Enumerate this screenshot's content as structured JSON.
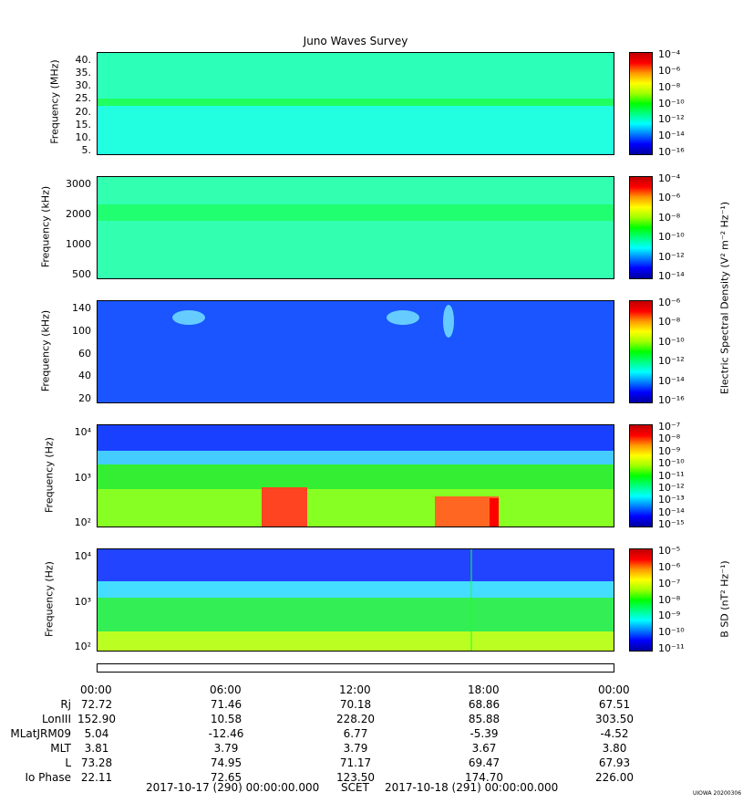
{
  "title": "Juno Waves Survey",
  "right_label": "Electric Spectral Density (V² m⁻² Hz⁻¹)",
  "bsd_label": "B SD (nT² Hz⁻¹)",
  "panels": [
    {
      "ylabel": "Frequency (MHz)",
      "yticks": [
        "40.",
        "35.",
        "30.",
        "25.",
        "20.",
        "15.",
        "10.",
        "5."
      ],
      "cticks": [
        "10⁻⁴",
        "10⁻⁶",
        "10⁻⁸",
        "10⁻¹⁰",
        "10⁻¹²",
        "10⁻¹⁴",
        "10⁻¹⁶"
      ]
    },
    {
      "ylabel": "Frequency (kHz)",
      "yticks": [
        "3000",
        "2000",
        "1000",
        "500"
      ],
      "cticks": [
        "10⁻⁴",
        "10⁻⁶",
        "10⁻⁸",
        "10⁻¹⁰",
        "10⁻¹²",
        "10⁻¹⁴"
      ]
    },
    {
      "ylabel": "Frequency (kHz)",
      "yticks": [
        "140",
        "100",
        "60",
        "40",
        "20"
      ],
      "cticks": [
        "10⁻⁶",
        "10⁻⁸",
        "10⁻¹⁰",
        "10⁻¹²",
        "10⁻¹⁴",
        "10⁻¹⁶"
      ]
    },
    {
      "ylabel": "Frequency (Hz)",
      "yticks": [
        "10⁴",
        "10³",
        "10²"
      ],
      "cticks": [
        "10⁻⁷",
        "10⁻⁸",
        "10⁻⁹",
        "10⁻¹⁰",
        "10⁻¹¹",
        "10⁻¹²",
        "10⁻¹³",
        "10⁻¹⁴",
        "10⁻¹⁵"
      ]
    },
    {
      "ylabel": "Frequency (Hz)",
      "yticks": [
        "10⁴",
        "10³",
        "10²"
      ],
      "cticks": [
        "10⁻⁵",
        "10⁻⁶",
        "10⁻⁷",
        "10⁻⁸",
        "10⁻⁹",
        "10⁻¹⁰",
        "10⁻¹¹"
      ]
    }
  ],
  "chart_data": {
    "type": "heatmap",
    "title": "Juno Waves Survey",
    "x_ticks": [
      "00:00",
      "06:00",
      "12:00",
      "18:00",
      "00:00"
    ],
    "ephemeris": [
      {
        "label": "Rj",
        "values": [
          "72.72",
          "71.46",
          "70.18",
          "68.86",
          "67.51"
        ]
      },
      {
        "label": "LonIII",
        "values": [
          "152.90",
          "10.58",
          "228.20",
          "85.88",
          "303.50"
        ]
      },
      {
        "label": "MLatJRM09",
        "values": [
          "5.04",
          "-12.46",
          "6.77",
          "-5.39",
          "-4.52"
        ]
      },
      {
        "label": "MLT",
        "values": [
          "3.81",
          "3.79",
          "3.79",
          "3.67",
          "3.80"
        ]
      },
      {
        "label": "L",
        "values": [
          "73.28",
          "74.95",
          "71.17",
          "69.47",
          "67.93"
        ]
      },
      {
        "label": "Io Phase",
        "values": [
          "22.11",
          "72.65",
          "123.50",
          "174.70",
          "226.00"
        ]
      }
    ]
  },
  "footer": {
    "start": "2017-10-17 (290) 00:00:00.000",
    "scet": "SCET",
    "end": "2017-10-18 (291) 00:00:00.000"
  },
  "version": "UIOWA 20200306"
}
